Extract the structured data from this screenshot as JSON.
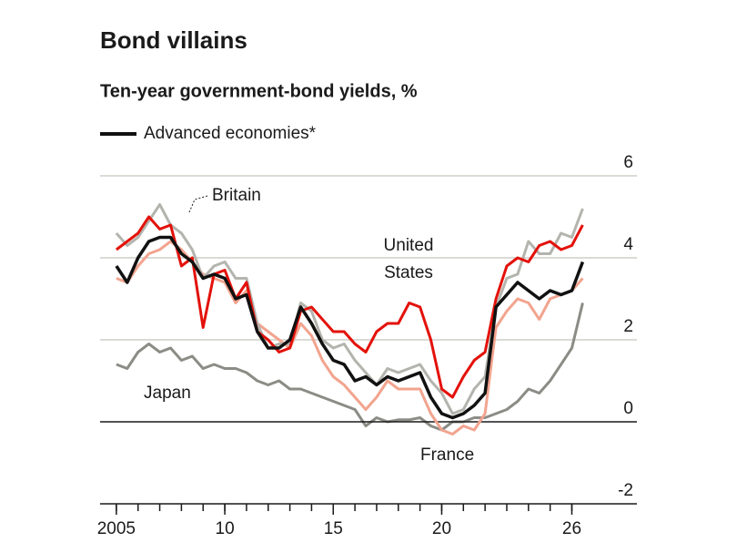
{
  "chart_data": {
    "type": "line",
    "title": "Bond villains",
    "subtitle": "Ten-year government-bond yields, %",
    "x": [
      2005,
      2005.5,
      2006,
      2006.5,
      2007,
      2007.5,
      2008,
      2008.5,
      2009,
      2009.5,
      2010,
      2010.5,
      2011,
      2011.5,
      2012,
      2012.5,
      2013,
      2013.5,
      2014,
      2014.5,
      2015,
      2015.5,
      2016,
      2016.5,
      2017,
      2017.5,
      2018,
      2018.5,
      2019,
      2019.5,
      2020,
      2020.5,
      2021,
      2021.5,
      2022,
      2022.5,
      2023,
      2023.5,
      2024,
      2024.5,
      2025,
      2025.5,
      2026,
      2026.5
    ],
    "series": [
      {
        "name": "Japan",
        "color": "#8c8c86",
        "values": [
          1.4,
          1.3,
          1.7,
          1.9,
          1.7,
          1.8,
          1.5,
          1.6,
          1.3,
          1.4,
          1.3,
          1.3,
          1.2,
          1.0,
          0.9,
          1.0,
          0.8,
          0.8,
          0.7,
          0.6,
          0.5,
          0.4,
          0.3,
          -0.1,
          0.1,
          0.0,
          0.05,
          0.05,
          0.1,
          -0.1,
          -0.2,
          0.0,
          0.0,
          0.1,
          0.1,
          0.2,
          0.3,
          0.5,
          0.8,
          0.7,
          1.0,
          1.4,
          1.8,
          2.9
        ]
      },
      {
        "name": "France",
        "color": "#f2a48f",
        "values": [
          3.5,
          3.4,
          3.8,
          4.1,
          4.2,
          4.4,
          4.2,
          3.9,
          3.6,
          3.5,
          3.4,
          2.9,
          3.2,
          2.4,
          2.2,
          2.0,
          1.8,
          2.4,
          2.1,
          1.5,
          1.1,
          0.9,
          0.6,
          0.3,
          0.6,
          1.0,
          0.8,
          0.8,
          0.8,
          0.2,
          -0.2,
          -0.3,
          -0.1,
          -0.2,
          0.2,
          2.3,
          2.7,
          3.0,
          2.9,
          2.5,
          3.0,
          3.1,
          3.2,
          3.5
        ]
      },
      {
        "name": "Britain",
        "color": "#b4b4ae",
        "values": [
          4.6,
          4.3,
          4.5,
          4.9,
          5.3,
          4.8,
          4.6,
          4.2,
          3.5,
          3.8,
          3.9,
          3.5,
          3.5,
          2.4,
          1.8,
          1.9,
          1.9,
          2.9,
          2.7,
          2.0,
          1.8,
          1.9,
          1.5,
          1.2,
          0.9,
          1.3,
          1.2,
          1.3,
          1.4,
          1.0,
          0.7,
          0.2,
          0.3,
          0.8,
          1.1,
          2.8,
          3.5,
          3.6,
          4.4,
          4.1,
          4.1,
          4.6,
          4.5,
          5.2
        ]
      },
      {
        "name": "United States",
        "color": "#e3120b",
        "values": [
          4.2,
          4.4,
          4.6,
          5.0,
          4.7,
          4.8,
          3.8,
          4.0,
          2.3,
          3.6,
          3.7,
          3.0,
          3.4,
          2.2,
          2.0,
          1.7,
          1.8,
          2.7,
          2.8,
          2.5,
          2.2,
          2.2,
          1.9,
          1.7,
          2.2,
          2.4,
          2.4,
          2.9,
          2.8,
          2.0,
          0.8,
          0.6,
          1.1,
          1.5,
          1.7,
          3.0,
          3.8,
          4.0,
          3.9,
          4.3,
          4.4,
          4.2,
          4.3,
          4.8
        ]
      },
      {
        "name": "Advanced economies*",
        "color": "#111111",
        "values": [
          3.8,
          3.4,
          4.0,
          4.4,
          4.5,
          4.5,
          4.1,
          3.9,
          3.5,
          3.6,
          3.5,
          3.0,
          3.1,
          2.2,
          1.8,
          1.8,
          2.0,
          2.8,
          2.4,
          1.9,
          1.5,
          1.4,
          1.0,
          1.1,
          0.9,
          1.1,
          1.0,
          1.1,
          1.2,
          0.6,
          0.2,
          0.1,
          0.2,
          0.4,
          0.7,
          2.8,
          3.1,
          3.4,
          3.2,
          3.0,
          3.2,
          3.1,
          3.2,
          3.9
        ]
      }
    ],
    "xlim": [
      2004.25,
      2029
    ],
    "ylim": [
      -2,
      6
    ],
    "yticks": [
      -2,
      0,
      2,
      4,
      6
    ],
    "xticks": [
      2005,
      {
        "value": 2010,
        "label": "10"
      },
      {
        "value": 2015,
        "label": "15"
      },
      {
        "value": 2020,
        "label": "20"
      },
      {
        "value": 2026,
        "label": "26"
      }
    ],
    "xminor": [
      2005,
      2006,
      2007,
      2008,
      2009,
      2010,
      2011,
      2012,
      2013,
      2014,
      2015,
      2016,
      2017,
      2018,
      2019,
      2020,
      2021,
      2022,
      2023,
      2024,
      2025,
      2026
    ],
    "grid": true
  }
}
